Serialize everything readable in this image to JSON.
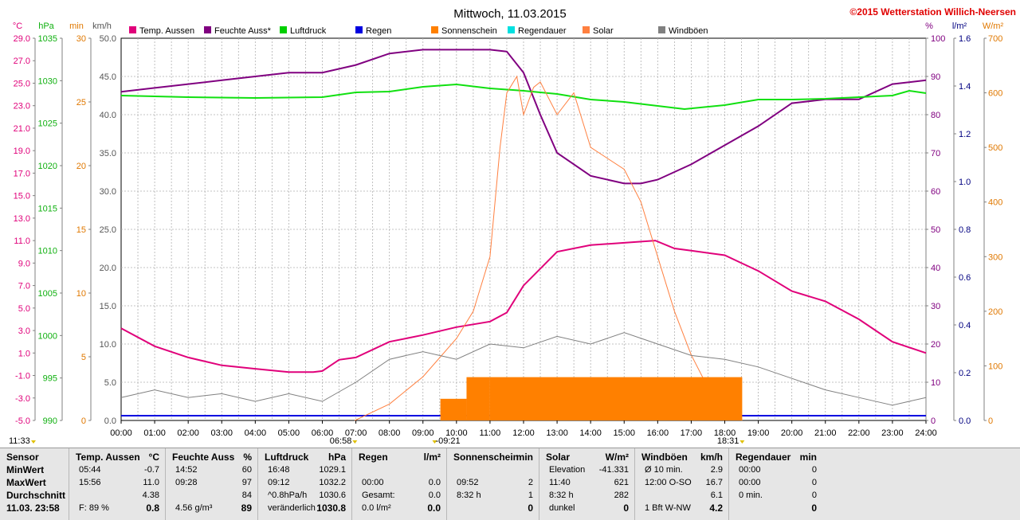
{
  "title": "Mittwoch, 11.03.2015",
  "copyright": "©2015 Wetterstation Willich-Neersen",
  "chart_data": {
    "type": "line",
    "x_range": [
      "00:00",
      "24:00"
    ],
    "x_ticks": [
      "00:00",
      "01:00",
      "02:00",
      "03:00",
      "04:00",
      "05:00",
      "06:00",
      "07:00",
      "08:00",
      "09:00",
      "10:00",
      "11:00",
      "12:00",
      "13:00",
      "14:00",
      "15:00",
      "16:00",
      "17:00",
      "18:00",
      "19:00",
      "20:00",
      "21:00",
      "22:00",
      "23:00",
      "24:00"
    ],
    "grid": true,
    "legend_position": "top",
    "axes": {
      "temp": {
        "unit": "°C",
        "range": [
          -5.0,
          29.0
        ],
        "ticks": [
          "29.0",
          "27.0",
          "25.0",
          "23.0",
          "21.0",
          "19.0",
          "17.0",
          "15.0",
          "13.0",
          "11.0",
          "9.0",
          "7.0",
          "5.0",
          "3.0",
          "1.0",
          "-1.0",
          "-3.0",
          "-5.0"
        ],
        "color": "#e0007a"
      },
      "pressure": {
        "unit": "hPa",
        "range": [
          990,
          1038
        ],
        "ticks": [
          "1035",
          "1030",
          "1025",
          "1020",
          "1015",
          "1010",
          "1005",
          "1000",
          "995",
          "990"
        ],
        "color": "#10b010"
      },
      "sunmin": {
        "unit": "min",
        "range": [
          0,
          30
        ],
        "ticks": [
          "30",
          "25",
          "20",
          "15",
          "10",
          "5",
          "0"
        ],
        "color": "#e07800"
      },
      "wind": {
        "unit": "km/h",
        "range": [
          0,
          50
        ],
        "ticks": [
          "50.0",
          "45.0",
          "40.0",
          "35.0",
          "30.0",
          "25.0",
          "20.0",
          "15.0",
          "10.0",
          "5.0",
          "0.0"
        ],
        "color": "#555555"
      },
      "humidity": {
        "unit": "%",
        "range": [
          0,
          100
        ],
        "ticks": [
          "100",
          "90",
          "80",
          "70",
          "60",
          "50",
          "40",
          "30",
          "20",
          "10",
          "0"
        ],
        "color": "#800080"
      },
      "rain": {
        "unit": "l/m²",
        "range": [
          0,
          1.6
        ],
        "ticks": [
          "1.6",
          "1.4",
          "1.2",
          "1.0",
          "0.8",
          "0.6",
          "0.4",
          "0.2",
          "0.0"
        ],
        "color": "#000080"
      },
      "solar": {
        "unit": "W/m²",
        "range": [
          0,
          700
        ],
        "ticks": [
          "700",
          "600",
          "500",
          "400",
          "300",
          "200",
          "100",
          "0"
        ],
        "color": "#e07800"
      }
    },
    "legend": [
      {
        "label": "Temp. Aussen",
        "color": "#e0007a"
      },
      {
        "label": "Feuchte Auss*",
        "color": "#800080"
      },
      {
        "label": "Luftdruck",
        "color": "#00d000"
      },
      {
        "label": "Regen",
        "color": "#0000e0"
      },
      {
        "label": "Sonnenschein",
        "color": "#ff8000"
      },
      {
        "label": "Regendauer",
        "color": "#00e0e0"
      },
      {
        "label": "Solar",
        "color": "#ff8040"
      },
      {
        "label": "Windböen",
        "color": "#808080"
      }
    ],
    "series": [
      {
        "name": "Temp. Aussen",
        "axis": "temp",
        "color": "#e0007a",
        "points": [
          [
            0,
            3.2
          ],
          [
            1,
            1.6
          ],
          [
            2,
            0.6
          ],
          [
            3,
            -0.1
          ],
          [
            4,
            -0.4
          ],
          [
            5,
            -0.7
          ],
          [
            5.73,
            -0.7
          ],
          [
            6,
            -0.6
          ],
          [
            6.5,
            0.4
          ],
          [
            7,
            0.6
          ],
          [
            8,
            2.0
          ],
          [
            9,
            2.6
          ],
          [
            10,
            3.3
          ],
          [
            11,
            3.8
          ],
          [
            11.5,
            4.6
          ],
          [
            12,
            7.0
          ],
          [
            12.5,
            8.5
          ],
          [
            13,
            10.0
          ],
          [
            14,
            10.6
          ],
          [
            15,
            10.8
          ],
          [
            15.93,
            11.0
          ],
          [
            16.5,
            10.3
          ],
          [
            17,
            10.1
          ],
          [
            18,
            9.7
          ],
          [
            18.5,
            9.0
          ],
          [
            19,
            8.3
          ],
          [
            20,
            6.5
          ],
          [
            21,
            5.6
          ],
          [
            22,
            4.0
          ],
          [
            23,
            2.0
          ],
          [
            24,
            1.0
          ]
        ]
      },
      {
        "name": "Feuchte Auss*",
        "axis": "humidity",
        "color": "#800080",
        "points": [
          [
            0,
            86
          ],
          [
            1,
            87
          ],
          [
            2,
            88
          ],
          [
            3,
            89
          ],
          [
            4,
            90
          ],
          [
            5,
            91
          ],
          [
            6,
            91
          ],
          [
            7,
            93
          ],
          [
            8,
            96
          ],
          [
            9,
            97
          ],
          [
            10,
            97
          ],
          [
            11,
            97
          ],
          [
            11.5,
            96.5
          ],
          [
            12,
            91
          ],
          [
            12.5,
            80
          ],
          [
            13,
            70
          ],
          [
            14,
            64
          ],
          [
            15,
            62
          ],
          [
            15.5,
            62
          ],
          [
            16,
            63
          ],
          [
            17,
            67
          ],
          [
            18,
            72
          ],
          [
            19,
            77
          ],
          [
            20,
            83
          ],
          [
            21,
            84
          ],
          [
            22,
            84
          ],
          [
            23,
            88
          ],
          [
            24,
            89
          ]
        ]
      },
      {
        "name": "Luftdruck",
        "axis": "pressure",
        "color": "#10e010",
        "points": [
          [
            0,
            1030.8
          ],
          [
            2,
            1030.6
          ],
          [
            4,
            1030.5
          ],
          [
            6,
            1030.6
          ],
          [
            7,
            1031.2
          ],
          [
            8,
            1031.3
          ],
          [
            9,
            1031.9
          ],
          [
            10,
            1032.2
          ],
          [
            11,
            1031.7
          ],
          [
            12,
            1031.4
          ],
          [
            13,
            1031.0
          ],
          [
            14,
            1030.3
          ],
          [
            15,
            1030.0
          ],
          [
            16,
            1029.5
          ],
          [
            16.8,
            1029.1
          ],
          [
            18,
            1029.6
          ],
          [
            19,
            1030.3
          ],
          [
            20,
            1030.3
          ],
          [
            21,
            1030.4
          ],
          [
            22,
            1030.6
          ],
          [
            23,
            1030.8
          ],
          [
            23.5,
            1031.4
          ],
          [
            24,
            1031.1
          ]
        ]
      },
      {
        "name": "Regen",
        "axis": "rain",
        "color": "#0000e0",
        "points": [
          [
            0,
            0.02
          ],
          [
            24,
            0.02
          ]
        ]
      },
      {
        "name": "Solar",
        "axis": "solar",
        "color": "#ff8040",
        "points": [
          [
            6.97,
            0
          ],
          [
            8,
            30
          ],
          [
            9,
            80
          ],
          [
            10,
            150
          ],
          [
            10.5,
            200
          ],
          [
            11,
            300
          ],
          [
            11.3,
            500
          ],
          [
            11.5,
            600
          ],
          [
            11.8,
            630
          ],
          [
            12,
            560
          ],
          [
            12.3,
            610
          ],
          [
            12.5,
            620
          ],
          [
            13,
            560
          ],
          [
            13.5,
            600
          ],
          [
            14,
            500
          ],
          [
            15,
            460
          ],
          [
            15.5,
            400
          ],
          [
            16,
            300
          ],
          [
            16.5,
            200
          ],
          [
            17,
            120
          ],
          [
            17.5,
            60
          ],
          [
            18,
            20
          ],
          [
            18.52,
            0
          ]
        ]
      },
      {
        "name": "Windböen",
        "axis": "wind",
        "color": "#808080",
        "points": [
          [
            0,
            3.0
          ],
          [
            1,
            4.0
          ],
          [
            2,
            3.0
          ],
          [
            3,
            3.5
          ],
          [
            4,
            2.5
          ],
          [
            5,
            3.5
          ],
          [
            6,
            2.5
          ],
          [
            7,
            5.0
          ],
          [
            8,
            8.0
          ],
          [
            9,
            9.0
          ],
          [
            10,
            8.0
          ],
          [
            11,
            10.0
          ],
          [
            12,
            9.5
          ],
          [
            13,
            11.0
          ],
          [
            14,
            10.0
          ],
          [
            15,
            11.5
          ],
          [
            16,
            10.0
          ],
          [
            17,
            8.5
          ],
          [
            18,
            8.0
          ],
          [
            19,
            7.0
          ],
          [
            20,
            5.5
          ],
          [
            21,
            4.0
          ],
          [
            22,
            3.0
          ],
          [
            23,
            2.0
          ],
          [
            24,
            3.0
          ]
        ]
      },
      {
        "name": "Sonnenschein",
        "axis": "sunmin",
        "color": "#ff8000",
        "bars": [
          [
            9.52,
            10.3,
            1
          ],
          [
            10.3,
            11.0,
            2
          ],
          [
            11.0,
            18.52,
            2
          ]
        ]
      }
    ],
    "time_markers": [
      {
        "label": "11:33",
        "hour": 0
      },
      {
        "label": "06:58",
        "hour": 6.97
      },
      {
        "label": "-09:21",
        "hour": 9.35
      },
      {
        "label": "18:31",
        "hour": 18.52
      }
    ]
  },
  "stats": {
    "rows": [
      "Sensor",
      "MinWert",
      "MaxWert",
      "Durchschnitt",
      "11.03. 23:58"
    ],
    "columns": [
      {
        "head": "Temp. Aussen",
        "unit": "°C",
        "min": [
          "05:44",
          "-0.7"
        ],
        "max": [
          "15:56",
          "11.0"
        ],
        "avg": [
          "",
          "4.38"
        ],
        "tot": [
          "F: 89 %",
          "0.8"
        ]
      },
      {
        "head": "Feuchte Auss",
        "unit": "%",
        "min": [
          "14:52",
          "60"
        ],
        "max": [
          "09:28",
          "97"
        ],
        "avg": [
          "",
          "84"
        ],
        "tot": [
          "4.56 g/m³",
          "89"
        ]
      },
      {
        "head": "Luftdruck",
        "unit": "hPa",
        "min": [
          "16:48",
          "1029.1"
        ],
        "max": [
          "09:12",
          "1032.2"
        ],
        "avg": [
          "^0.8hPa/h",
          "1030.6"
        ],
        "tot": [
          "veränderlich",
          "1030.8"
        ]
      },
      {
        "head": "Regen",
        "unit": "l/m²",
        "min": [
          "",
          ""
        ],
        "max": [
          "00:00",
          "0.0"
        ],
        "avg": [
          "Gesamt:",
          "0.0"
        ],
        "tot": [
          "0.0 l/m²",
          "0.0"
        ]
      },
      {
        "head": "Sonnenschein",
        "unit": "min",
        "min": [
          "",
          ""
        ],
        "max": [
          "09:52",
          "2"
        ],
        "avg": [
          "8:32 h",
          "1"
        ],
        "tot": [
          "",
          "0"
        ]
      },
      {
        "head": "Solar",
        "unit": "W/m²",
        "min": [
          "Elevation",
          "-41.331"
        ],
        "max": [
          "11:40",
          "621"
        ],
        "avg": [
          "8:32 h",
          "282"
        ],
        "tot": [
          "dunkel",
          "0"
        ]
      },
      {
        "head": "Windböen",
        "unit": "km/h",
        "min": [
          "Ø 10 min.",
          "2.9"
        ],
        "max": [
          "12:00   O-SO",
          "16.7"
        ],
        "avg": [
          "",
          "6.1"
        ],
        "tot": [
          "1 Bft W-NW",
          "4.2"
        ]
      },
      {
        "head": "Regendauer",
        "unit": "min",
        "min": [
          "00:00",
          "0"
        ],
        "max": [
          "00:00",
          "0"
        ],
        "avg": [
          "0 min.",
          "0"
        ],
        "tot": [
          "",
          "0"
        ]
      }
    ]
  }
}
